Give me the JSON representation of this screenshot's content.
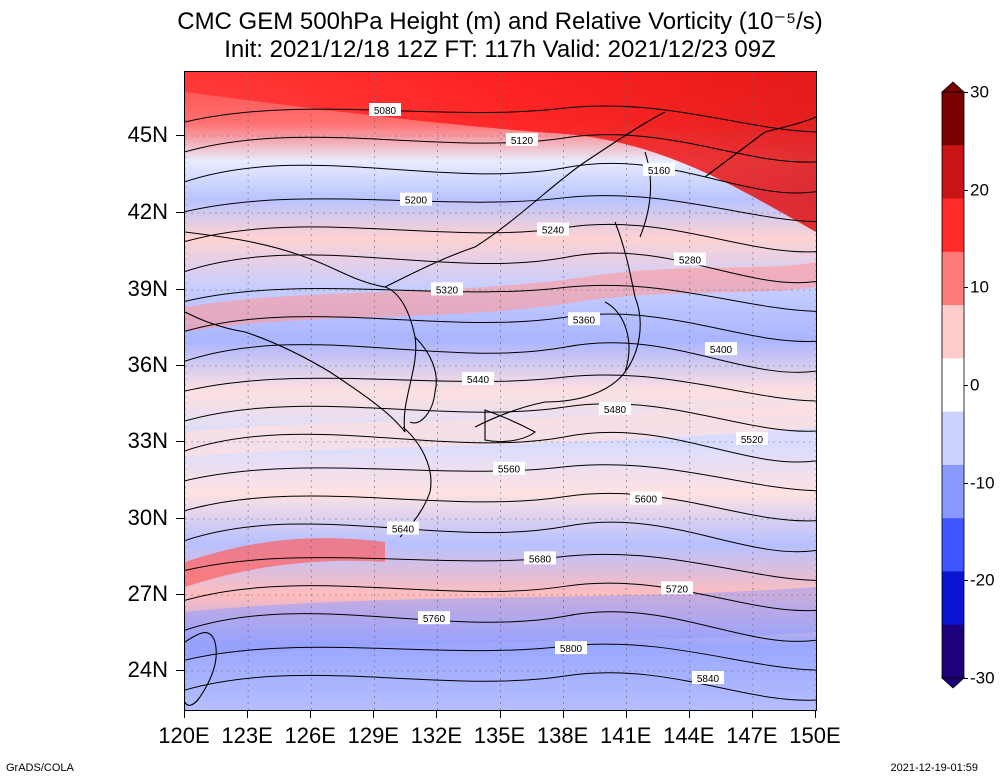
{
  "title": {
    "line1": "CMC GEM 500hPa Height (m) and Relative Vorticity (10⁻⁵/s)",
    "line2": "Init: 2021/12/18 12Z  FT: 117h  Valid: 2021/12/23 09Z"
  },
  "lat_axis": [
    "45N",
    "42N",
    "39N",
    "36N",
    "33N",
    "30N",
    "27N",
    "24N"
  ],
  "lon_axis": [
    "120E",
    "123E",
    "126E",
    "129E",
    "132E",
    "135E",
    "138E",
    "141E",
    "144E",
    "147E",
    "150E"
  ],
  "contour_labels": [
    "5080",
    "5120",
    "5160",
    "5200",
    "5240",
    "5280",
    "5320",
    "5360",
    "5400",
    "5440",
    "5480",
    "5520",
    "5560",
    "5600",
    "5640",
    "5680",
    "5720",
    "5760",
    "5800",
    "5840"
  ],
  "colorbar": {
    "labels": [
      "30",
      "20",
      "10",
      "0",
      "-10",
      "-20",
      "-30"
    ],
    "colors": [
      "#7a0000",
      "#c81414",
      "#ff2a2a",
      "#ff7a7a",
      "#ffcccc",
      "#ffffff",
      "#cdd3ff",
      "#8a99ff",
      "#3f55ff",
      "#0a14d0",
      "#1e007a"
    ]
  },
  "footer": {
    "left": "GrADS/COLA",
    "right": "2021-12-19-01:59"
  }
}
